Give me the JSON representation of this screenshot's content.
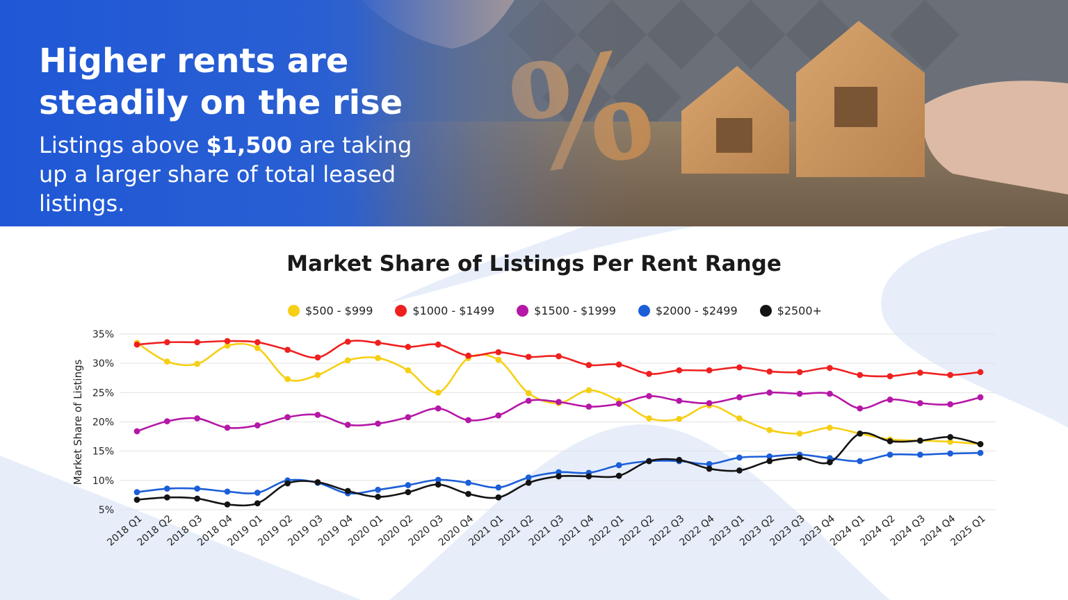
{
  "hero": {
    "headline": "Higher rents are steadily on the rise",
    "sub_before": "Listings above ",
    "sub_bold": "$1,500",
    "sub_after": " are taking up a larger share of total leased listings."
  },
  "colors": {
    "hero_blue": "#1f57d6",
    "bg_shape": "#e7eefa",
    "grid": "#e2e2e2"
  },
  "chart_data": {
    "type": "line",
    "title": "Market Share of Listings Per Rent Range",
    "xlabel": "",
    "ylabel": "Market Share of Listings",
    "ylim": [
      5,
      35
    ],
    "yticks": [
      "5%",
      "10%",
      "15%",
      "20%",
      "25%",
      "30%",
      "35%"
    ],
    "legend_position": "top-center",
    "grid": true,
    "x": [
      "2018 Q1",
      "2018 Q2",
      "2018 Q3",
      "2018 Q4",
      "2019 Q1",
      "2019 Q2",
      "2019 Q3",
      "2019 Q4",
      "2020 Q1",
      "2020 Q2",
      "2020 Q3",
      "2020 Q4",
      "2021 Q1",
      "2021 Q2",
      "2021 Q3",
      "2021 Q4",
      "2022 Q1",
      "2022 Q2",
      "2022 Q3",
      "2022 Q4",
      "2023 Q1",
      "2023 Q2",
      "2023 Q3",
      "2023 Q4",
      "2024 Q1",
      "2024 Q2",
      "2024 Q3",
      "2024 Q4",
      "2025 Q1"
    ],
    "series": [
      {
        "name": "$500 - $999",
        "color": "#f6cf14",
        "values": [
          33.5,
          30.3,
          29.9,
          33.0,
          32.6,
          27.3,
          28.0,
          30.5,
          30.9,
          28.8,
          25.0,
          30.9,
          30.6,
          24.9,
          23.2,
          25.4,
          23.6,
          20.6,
          20.5,
          22.8,
          20.6,
          18.6,
          18.0,
          19.0,
          18.0,
          17.0,
          16.8,
          16.6,
          16.2
        ]
      },
      {
        "name": "$1000 - $1499",
        "color": "#ef2020",
        "values": [
          33.2,
          33.6,
          33.6,
          33.8,
          33.6,
          32.3,
          31.0,
          33.7,
          33.5,
          32.8,
          33.2,
          31.3,
          31.9,
          31.1,
          31.2,
          29.7,
          29.8,
          28.2,
          28.8,
          28.8,
          29.3,
          28.6,
          28.5,
          29.2,
          28.0,
          27.8,
          28.4,
          28.0,
          28.5
        ]
      },
      {
        "name": "$1500 - $1999",
        "color": "#b517a6",
        "values": [
          18.4,
          20.1,
          20.6,
          19.0,
          19.4,
          20.8,
          21.2,
          19.5,
          19.7,
          20.8,
          22.3,
          20.3,
          21.1,
          23.6,
          23.4,
          22.6,
          23.1,
          24.4,
          23.6,
          23.2,
          24.2,
          25.0,
          24.8,
          24.8,
          22.3,
          23.8,
          23.2,
          23.0,
          24.2
        ]
      },
      {
        "name": "$2000 - $2499",
        "color": "#1b5ed8",
        "values": [
          8.0,
          8.6,
          8.6,
          8.1,
          7.9,
          10.0,
          9.6,
          7.8,
          8.4,
          9.2,
          10.1,
          9.6,
          8.8,
          10.5,
          11.4,
          11.3,
          12.6,
          13.3,
          13.3,
          12.8,
          13.9,
          14.1,
          14.4,
          13.8,
          13.3,
          14.4,
          14.4,
          14.6,
          14.7
        ]
      },
      {
        "name": "$2500+",
        "color": "#141414",
        "values": [
          6.7,
          7.1,
          6.9,
          5.9,
          6.1,
          9.5,
          9.7,
          8.2,
          7.2,
          8.0,
          9.3,
          7.7,
          7.1,
          9.6,
          10.7,
          10.7,
          10.8,
          13.3,
          13.5,
          12.0,
          11.7,
          13.3,
          13.9,
          13.1,
          18.0,
          16.7,
          16.8,
          17.4,
          16.2
        ]
      }
    ]
  }
}
